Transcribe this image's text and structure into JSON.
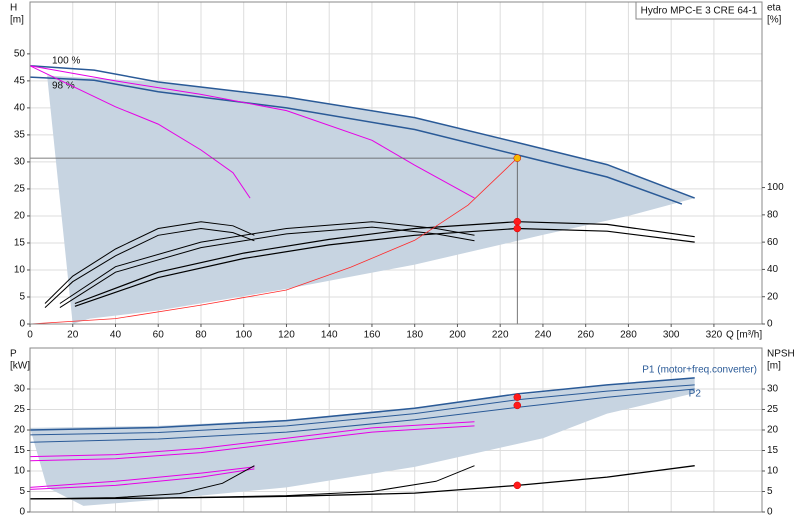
{
  "chart_data": [
    {
      "type": "line",
      "title": "Hydro MPC-E 3 CRE 64-1",
      "ylabel": [
        "H",
        "[m]"
      ],
      "y2label": [
        "eta",
        "[%]"
      ],
      "xlabel": "Q [m³/h]",
      "xlim": [
        0,
        342.5
      ],
      "xticks": [
        0,
        20,
        40,
        60,
        80,
        100,
        120,
        140,
        160,
        180,
        200,
        220,
        240,
        260,
        280,
        300,
        320
      ],
      "ylim": [
        0,
        59.6
      ],
      "yticks": [
        0,
        5,
        10,
        15,
        20,
        25,
        30,
        35,
        40,
        45,
        50
      ],
      "y2lim": [
        0,
        236
      ],
      "y2ticks": [
        0,
        20,
        40,
        60,
        80,
        100
      ],
      "grid": true,
      "series": [
        {
          "style": "area",
          "color": "#c7d4e1",
          "x": [
            8,
            60,
            120,
            180,
            228,
            270,
            311,
            280,
            240,
            180,
            120,
            60,
            28,
            20
          ],
          "values": [
            46,
            44.8,
            42,
            38.2,
            33.6,
            29.5,
            23.3,
            20,
            16.5,
            11,
            6.5,
            2.5,
            1,
            0
          ]
        },
        {
          "name": "100 %",
          "style": "line",
          "color": "#2a5a97",
          "width": 1.5,
          "x": [
            0,
            30,
            60,
            120,
            180,
            228,
            270,
            311
          ],
          "values": [
            47.8,
            47,
            44.8,
            42,
            38.2,
            33.6,
            29.5,
            23.3
          ]
        },
        {
          "name": "98 %",
          "style": "line",
          "color": "#2a5a97",
          "width": 1.5,
          "x": [
            0,
            30,
            60,
            120,
            180,
            228,
            270,
            305
          ],
          "values": [
            45.7,
            45.1,
            43,
            40,
            36,
            31.3,
            27.2,
            22.2
          ]
        },
        {
          "style": "line",
          "color": "#e600e6",
          "width": 1,
          "x": [
            0,
            20,
            40,
            60,
            80,
            95,
            103
          ],
          "values": [
            47.8,
            44,
            40.2,
            37,
            32.2,
            28,
            23.3
          ]
        },
        {
          "style": "line",
          "color": "#e600e6",
          "width": 1,
          "x": [
            0,
            40,
            80,
            120,
            160,
            180,
            208
          ],
          "values": [
            47.8,
            45,
            42.5,
            39.5,
            34,
            29.4,
            23.3
          ]
        },
        {
          "style": "line",
          "color": "#000000",
          "width": 1.2,
          "axis": "y2",
          "x": [
            21,
            60,
            100,
            140,
            180,
            228,
            270,
            311
          ],
          "values": [
            15,
            38,
            52,
            62,
            70,
            75,
            73,
            64
          ]
        },
        {
          "style": "line",
          "color": "#000000",
          "width": 1.2,
          "axis": "y2",
          "x": [
            21,
            60,
            100,
            140,
            180,
            228,
            270,
            311
          ],
          "values": [
            13,
            34,
            48,
            58,
            65,
            70,
            68,
            60
          ]
        },
        {
          "style": "line",
          "color": "#000000",
          "width": 1,
          "axis": "y2",
          "x": [
            14,
            40,
            80,
            120,
            160,
            190,
            208
          ],
          "values": [
            15,
            42,
            60,
            70,
            75,
            70,
            65
          ]
        },
        {
          "style": "line",
          "color": "#000000",
          "width": 1,
          "axis": "y2",
          "x": [
            14,
            40,
            80,
            120,
            160,
            190,
            208
          ],
          "values": [
            12,
            38,
            56,
            66,
            71,
            66,
            61
          ]
        },
        {
          "style": "line",
          "color": "#000000",
          "width": 1,
          "axis": "y2",
          "x": [
            7,
            20,
            40,
            60,
            80,
            95,
            105
          ],
          "values": [
            15,
            35,
            55,
            70,
            75,
            72,
            65
          ]
        },
        {
          "style": "line",
          "color": "#000000",
          "width": 1,
          "axis": "y2",
          "x": [
            7,
            20,
            40,
            60,
            80,
            95,
            105
          ],
          "values": [
            12,
            31,
            50,
            65,
            70,
            67,
            61
          ]
        },
        {
          "style": "line",
          "color": "#ff2a2a",
          "width": 0.8,
          "x": [
            0,
            40,
            80,
            120,
            150,
            180,
            205,
            228
          ],
          "values": [
            0,
            1,
            3.5,
            6.3,
            10.5,
            15.5,
            22,
            30.7
          ]
        },
        {
          "style": "line",
          "color": "#555555",
          "width": 0.8,
          "x": [
            0,
            228
          ],
          "values": [
            30.7,
            30.7
          ]
        },
        {
          "style": "line",
          "color": "#555555",
          "width": 0.8,
          "x": [
            228,
            228
          ],
          "values": [
            30.7,
            0
          ]
        },
        {
          "style": "points",
          "color": "#ff1a1a",
          "axis": "y2",
          "x": [
            228,
            228
          ],
          "values": [
            75,
            70
          ]
        },
        {
          "style": "points",
          "color": "#f5b800",
          "x": [
            228
          ],
          "values": [
            30.7
          ]
        }
      ]
    },
    {
      "type": "line",
      "ylabel": [
        "P",
        "[kW]"
      ],
      "y2label": [
        "NPSH",
        "[m]"
      ],
      "xlim": [
        0,
        342.5
      ],
      "ylim": [
        0,
        40
      ],
      "yticks": [
        0,
        5,
        10,
        15,
        20,
        25,
        30
      ],
      "y2lim": [
        0,
        40
      ],
      "y2ticks": [
        0,
        5,
        10,
        15,
        20,
        25,
        30
      ],
      "grid": true,
      "series": [
        {
          "style": "area",
          "color": "#c7d4e1",
          "x": [
            0,
            60,
            120,
            180,
            228,
            270,
            311,
            311,
            270,
            240,
            180,
            120,
            60,
            25,
            8
          ],
          "values": [
            20.5,
            21,
            22.5,
            25.5,
            28.5,
            31,
            32.7,
            29,
            24,
            18,
            11,
            6,
            3,
            1.5,
            6
          ]
        },
        {
          "name": "P1 (motor+freq.converter)",
          "style": "line",
          "color": "#2a5a97",
          "width": 1.5,
          "x": [
            0,
            60,
            120,
            180,
            228,
            270,
            311
          ],
          "values": [
            20,
            20.6,
            22.3,
            25.3,
            28.8,
            31,
            32.7
          ]
        },
        {
          "style": "line",
          "color": "#2a5a97",
          "width": 1,
          "x": [
            0,
            60,
            120,
            180,
            228,
            270,
            311
          ],
          "values": [
            18.8,
            19.4,
            21,
            24,
            27.4,
            29.5,
            31
          ]
        },
        {
          "name": "P2",
          "style": "line",
          "color": "#2a5a97",
          "width": 1,
          "x": [
            0,
            60,
            120,
            180,
            228,
            270,
            311
          ],
          "values": [
            17,
            17.8,
            19.5,
            22.5,
            25.5,
            28,
            30
          ]
        },
        {
          "style": "line",
          "color": "#e600e6",
          "width": 1,
          "x": [
            0,
            40,
            80,
            120,
            160,
            208
          ],
          "values": [
            13.5,
            14,
            15.5,
            18,
            20.5,
            22
          ]
        },
        {
          "style": "line",
          "color": "#e600e6",
          "width": 1,
          "x": [
            0,
            40,
            80,
            120,
            160,
            208
          ],
          "values": [
            12.5,
            13,
            14.5,
            17,
            19.5,
            21
          ]
        },
        {
          "style": "line",
          "color": "#e600e6",
          "width": 1,
          "x": [
            0,
            40,
            80,
            105
          ],
          "values": [
            6,
            7.5,
            9.5,
            11
          ]
        },
        {
          "style": "line",
          "color": "#e600e6",
          "width": 1,
          "x": [
            0,
            40,
            80,
            105
          ],
          "values": [
            5.5,
            6.5,
            8.5,
            10.5
          ]
        },
        {
          "style": "line",
          "color": "#000000",
          "width": 1.3,
          "axis": "y2",
          "x": [
            0,
            60,
            120,
            180,
            228,
            270,
            311
          ],
          "values": [
            3.2,
            3.4,
            3.8,
            4.6,
            6.5,
            8.5,
            11.3
          ]
        },
        {
          "style": "line",
          "color": "#000000",
          "width": 1,
          "axis": "y2",
          "x": [
            0,
            60,
            120,
            160,
            190,
            208
          ],
          "values": [
            3.2,
            3.4,
            4,
            5,
            7.5,
            11.3
          ]
        },
        {
          "style": "line",
          "color": "#000000",
          "width": 1,
          "axis": "y2",
          "x": [
            0,
            40,
            70,
            90,
            105
          ],
          "values": [
            3.2,
            3.5,
            4.5,
            7,
            11.3
          ]
        },
        {
          "style": "points",
          "color": "#ff1a1a",
          "x": [
            228,
            228
          ],
          "values": [
            28,
            26
          ]
        },
        {
          "style": "points",
          "color": "#ff1a1a",
          "axis": "y2",
          "x": [
            228
          ],
          "values": [
            6.5
          ]
        }
      ]
    }
  ]
}
